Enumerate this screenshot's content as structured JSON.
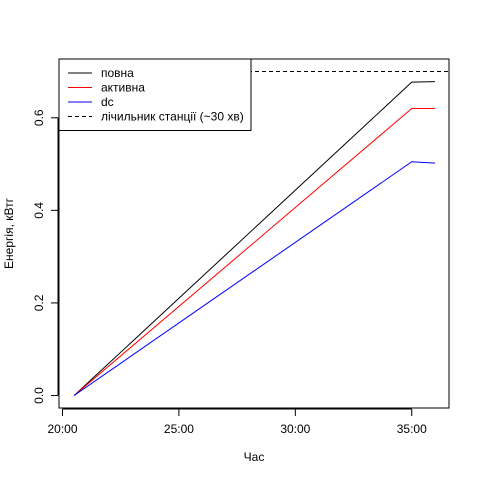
{
  "chart_data": {
    "type": "line",
    "title": "",
    "xlabel": "Час",
    "ylabel": "Енергія, кВтг",
    "x_unit": "minutes:seconds",
    "xlim": [
      "20:00",
      "36:30"
    ],
    "ylim": [
      0,
      0.7
    ],
    "xticks": [
      "20:00",
      "25:00",
      "30:00",
      "35:00"
    ],
    "yticks": [
      "0.0",
      "0.2",
      "0.4",
      "0.6"
    ],
    "grid": false,
    "legend_position": "top-left",
    "x": [
      "20:30",
      "35:00",
      "36:00"
    ],
    "series": [
      {
        "name": "повна",
        "color": "#000000",
        "style": "solid",
        "values": [
          0.0,
          0.677,
          0.678
        ]
      },
      {
        "name": "активна",
        "color": "#ff0000",
        "style": "solid",
        "values": [
          0.0,
          0.62,
          0.62
        ]
      },
      {
        "name": "dc",
        "color": "#0000ff",
        "style": "solid",
        "values": [
          0.0,
          0.505,
          0.502
        ]
      }
    ],
    "reference_lines": [
      {
        "name": "лічильник станції (~30 хв)",
        "color": "#000000",
        "style": "dashed",
        "y": 0.7
      }
    ]
  }
}
